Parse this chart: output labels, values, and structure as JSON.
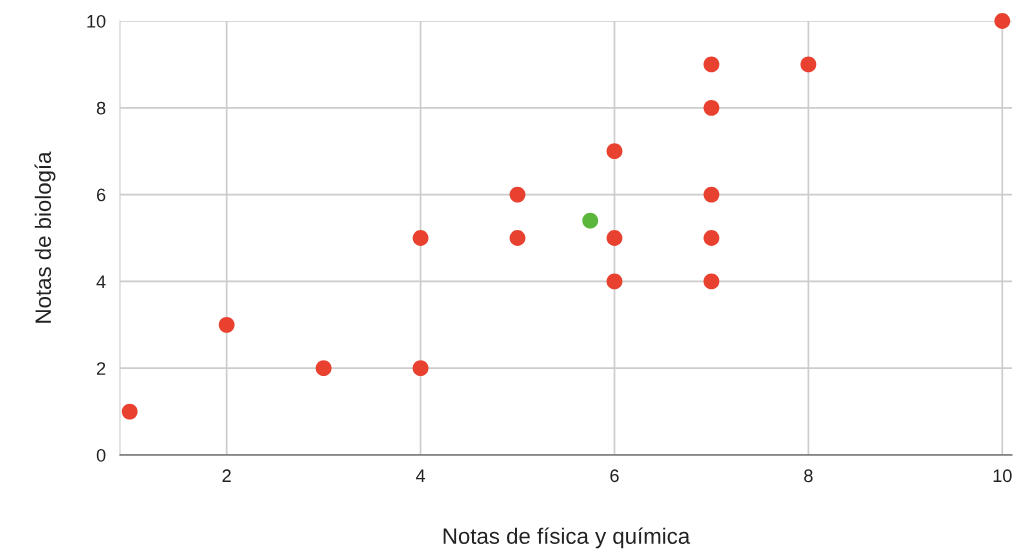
{
  "chart_data": {
    "type": "scatter",
    "xlabel": "Notas de física y química",
    "ylabel": "Notas de biología",
    "series": [
      {
        "color": "#e8412f",
        "x": [
          1,
          2,
          3,
          4,
          4,
          5,
          5,
          6,
          6,
          6,
          7,
          7,
          7,
          7,
          7,
          8,
          10
        ],
        "values": [
          1,
          3,
          2,
          2,
          5,
          5,
          6,
          4,
          5,
          7,
          4,
          5,
          6,
          8,
          9,
          9,
          10
        ]
      },
      {
        "color": "#5bb73c",
        "x": [
          5.75
        ],
        "values": [
          5.4
        ]
      }
    ],
    "xlim": [
      0.9,
      10.1
    ],
    "ylim": [
      0,
      10
    ],
    "xticks": [
      2,
      4,
      6,
      8,
      10
    ],
    "yticks": [
      0,
      2,
      4,
      6,
      8,
      10
    ],
    "grid": true,
    "marker": "circle",
    "legend": false
  }
}
